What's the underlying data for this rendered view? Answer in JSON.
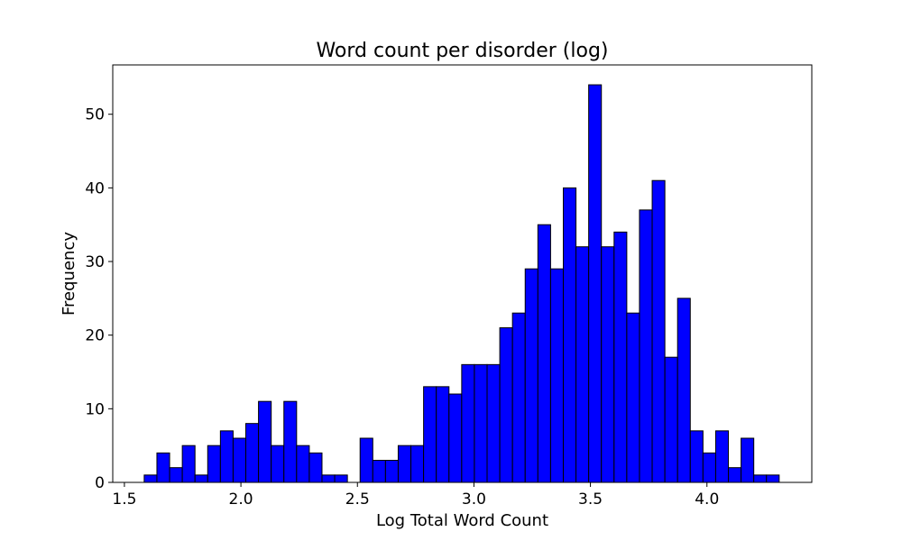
{
  "chart_data": {
    "type": "bar",
    "title": "Word count per disorder (log)",
    "xlabel": "Log Total Word Count",
    "ylabel": "Frequency",
    "xlim": [
      1.45,
      4.45
    ],
    "ylim": [
      0,
      56.7
    ],
    "x_ticks": [
      1.5,
      2.0,
      2.5,
      3.0,
      3.5,
      4.0
    ],
    "x_tick_labels": [
      "1.5",
      "2.0",
      "2.5",
      "3.0",
      "3.5",
      "4.0"
    ],
    "y_ticks": [
      0,
      10,
      20,
      30,
      40,
      50
    ],
    "y_tick_labels": [
      "0",
      "10",
      "20",
      "30",
      "40",
      "50"
    ],
    "bin_start": 1.585,
    "bin_width": 0.0545,
    "values": [
      1,
      4,
      2,
      5,
      1,
      5,
      7,
      6,
      8,
      11,
      5,
      11,
      5,
      4,
      1,
      1,
      0,
      6,
      3,
      3,
      5,
      5,
      13,
      13,
      12,
      16,
      16,
      16,
      21,
      23,
      29,
      35,
      29,
      40,
      32,
      54,
      32,
      34,
      23,
      37,
      41,
      17,
      25,
      7,
      4,
      7,
      2,
      6,
      1,
      1
    ],
    "bar_color": "#0000ff",
    "edge_color": "#000000",
    "grid": false
  }
}
